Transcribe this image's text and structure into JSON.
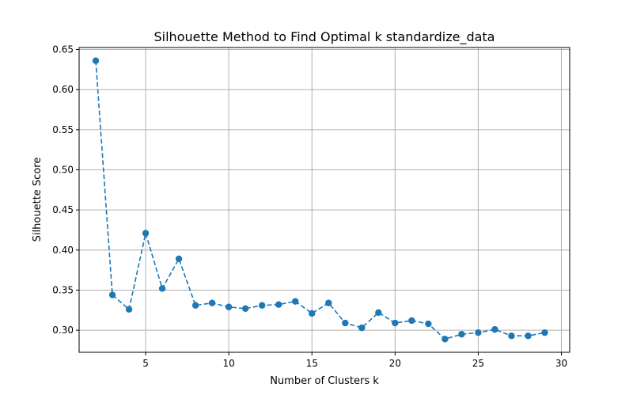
{
  "chart_data": {
    "type": "line",
    "title": "Silhouette Method to Find Optimal k standardize_data",
    "xlabel": "Number of Clusters k",
    "ylabel": "Silhouette Score",
    "xlim": [
      1,
      30.5
    ],
    "ylim": [
      0.2725,
      0.6525
    ],
    "xticks": [
      5,
      10,
      15,
      20,
      25,
      30
    ],
    "yticks": [
      0.3,
      0.35,
      0.4,
      0.45,
      0.5,
      0.55,
      0.6,
      0.65
    ],
    "xtick_labels": [
      "5",
      "10",
      "15",
      "20",
      "25",
      "30"
    ],
    "ytick_labels": [
      "0.30",
      "0.35",
      "0.40",
      "0.45",
      "0.50",
      "0.55",
      "0.60",
      "0.65"
    ],
    "grid": true,
    "series": [
      {
        "line_style": "dashed",
        "marker": "circle",
        "color": "#1f77b4",
        "x": [
          2,
          3,
          4,
          5,
          6,
          7,
          8,
          9,
          10,
          11,
          12,
          13,
          14,
          15,
          16,
          17,
          18,
          19,
          20,
          21,
          22,
          23,
          24,
          25,
          26,
          27,
          28,
          29
        ],
        "y": [
          0.636,
          0.344,
          0.326,
          0.421,
          0.352,
          0.389,
          0.331,
          0.334,
          0.329,
          0.327,
          0.331,
          0.332,
          0.336,
          0.321,
          0.334,
          0.309,
          0.303,
          0.322,
          0.309,
          0.312,
          0.308,
          0.289,
          0.295,
          0.297,
          0.301,
          0.293,
          0.293,
          0.297
        ]
      }
    ]
  }
}
